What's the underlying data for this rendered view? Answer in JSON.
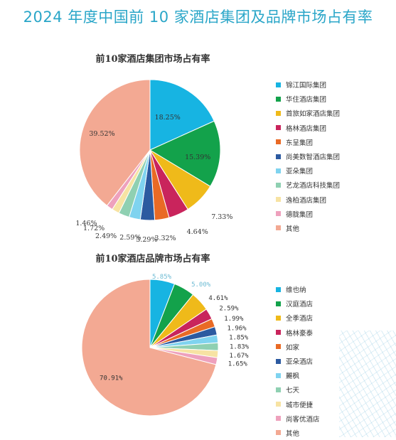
{
  "page_title": "2024 年度中国前 10 家酒店集团及品牌市场占有率",
  "chart_data": [
    {
      "type": "pie",
      "title": "前10家酒店集团市场占有率",
      "categories": [
        "锦江国际集团",
        "华住酒店集团",
        "首旅如家酒店集团",
        "格林酒店集团",
        "东呈集团",
        "尚美数智酒店集团",
        "亚朵集团",
        "艺龙酒店科技集团",
        "逸柏酒店集团",
        "德胧集团",
        "其他"
      ],
      "values": [
        18.25,
        15.39,
        7.33,
        4.64,
        3.32,
        3.29,
        2.59,
        2.49,
        1.72,
        1.46,
        39.52
      ],
      "value_labels": [
        "18.25%",
        "15.39%",
        "7.33%",
        "4.64%",
        "3.32%",
        "3.29%",
        "2.59%",
        "2.49%",
        "1.72%",
        "1.46%",
        "39.52%"
      ],
      "colors": [
        "#17b4e2",
        "#13a24b",
        "#efba1a",
        "#c9245c",
        "#e96a25",
        "#2c5aa0",
        "#7fd3ef",
        "#8fd0b2",
        "#f7e3a3",
        "#eea1bd",
        "#f3a993"
      ],
      "legend_position": "right"
    },
    {
      "type": "pie",
      "title": "前10家酒店品牌市场占有率",
      "categories": [
        "维也纳",
        "汉庭酒店",
        "全季酒店",
        "格林豪泰",
        "如家",
        "亚朵酒店",
        "麗枫",
        "七天",
        "城市便捷",
        "尚客优酒店",
        "其他"
      ],
      "values": [
        5.85,
        5.0,
        4.61,
        2.59,
        1.99,
        1.96,
        1.85,
        1.83,
        1.67,
        1.65,
        70.91
      ],
      "value_labels": [
        "5.85%",
        "5.00%",
        "4.61%",
        "2.59%",
        "1.99%",
        "1.96%",
        "1.85%",
        "1.83%",
        "1.67%",
        "1.65%",
        "70.91%"
      ],
      "colors": [
        "#17b4e2",
        "#13a24b",
        "#efba1a",
        "#c9245c",
        "#e96a25",
        "#2c5aa0",
        "#7fd3ef",
        "#8fd0b2",
        "#f7e3a3",
        "#eea1bd",
        "#f3a993"
      ],
      "legend_position": "right"
    }
  ]
}
